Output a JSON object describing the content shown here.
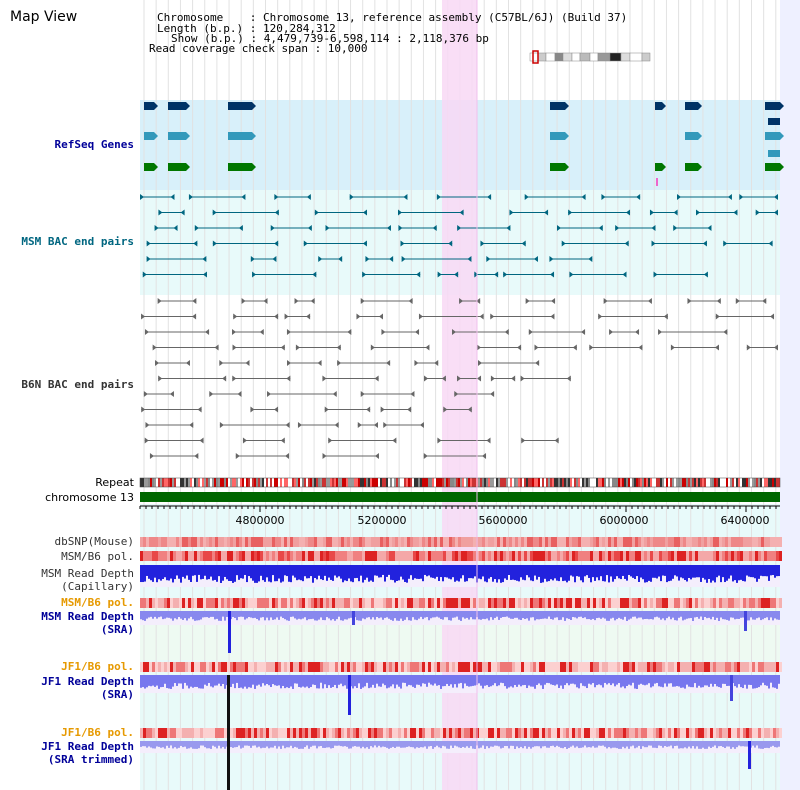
{
  "view_title": "Map View",
  "info": {
    "chromosome": "Chromosome    : Chromosome 13, reference assembly (C57BL/6J) (Build 37)",
    "length": "Length (b.p.) : 120,284,312",
    "show": "Show (b.p.) : 4,479,739-6,598,114 : 2,118,376 bp",
    "coverage": "Read coverage check span : 10,000"
  },
  "tracks": {
    "refseq": "RefSeq Genes",
    "msm_bac": "MSM BAC end pairs",
    "b6n_bac": "B6N BAC end pairs",
    "repeat": "Repeat",
    "chromosome": "chromosome 13",
    "dbsnp": "dbSNP(Mouse)",
    "msm_b6_pol": "MSM/B6 pol.",
    "msm_depth_cap_1": "MSM Read Depth",
    "msm_depth_cap_2": "(Capillary)",
    "msm_b6_pol2": "MSM/B6 pol.",
    "msm_depth_sra_1": "MSM Read Depth",
    "msm_depth_sra_2": "(SRA)",
    "jf1_b6_pol": "JF1/B6 pol.",
    "jf1_depth_sra_1": "JF1 Read Depth",
    "jf1_depth_sra_2": "(SRA)",
    "jf1_b6_pol2": "JF1/B6 pol.",
    "jf1_depth_trim_1": "JF1 Read Depth",
    "jf1_depth_trim_2": "(SRA trimmed)"
  },
  "axis": {
    "ticks": [
      "4800000",
      "5200000",
      "5600000",
      "6000000",
      "6400000"
    ]
  },
  "colors": {
    "refseq_label": "#000099",
    "msm_label": "#006680",
    "b6n_label": "#333333",
    "pol_orange": "#e69900",
    "depth_blue": "#000099",
    "highlight": "#f8d8f4",
    "chromosome_bar": "#006600"
  }
}
